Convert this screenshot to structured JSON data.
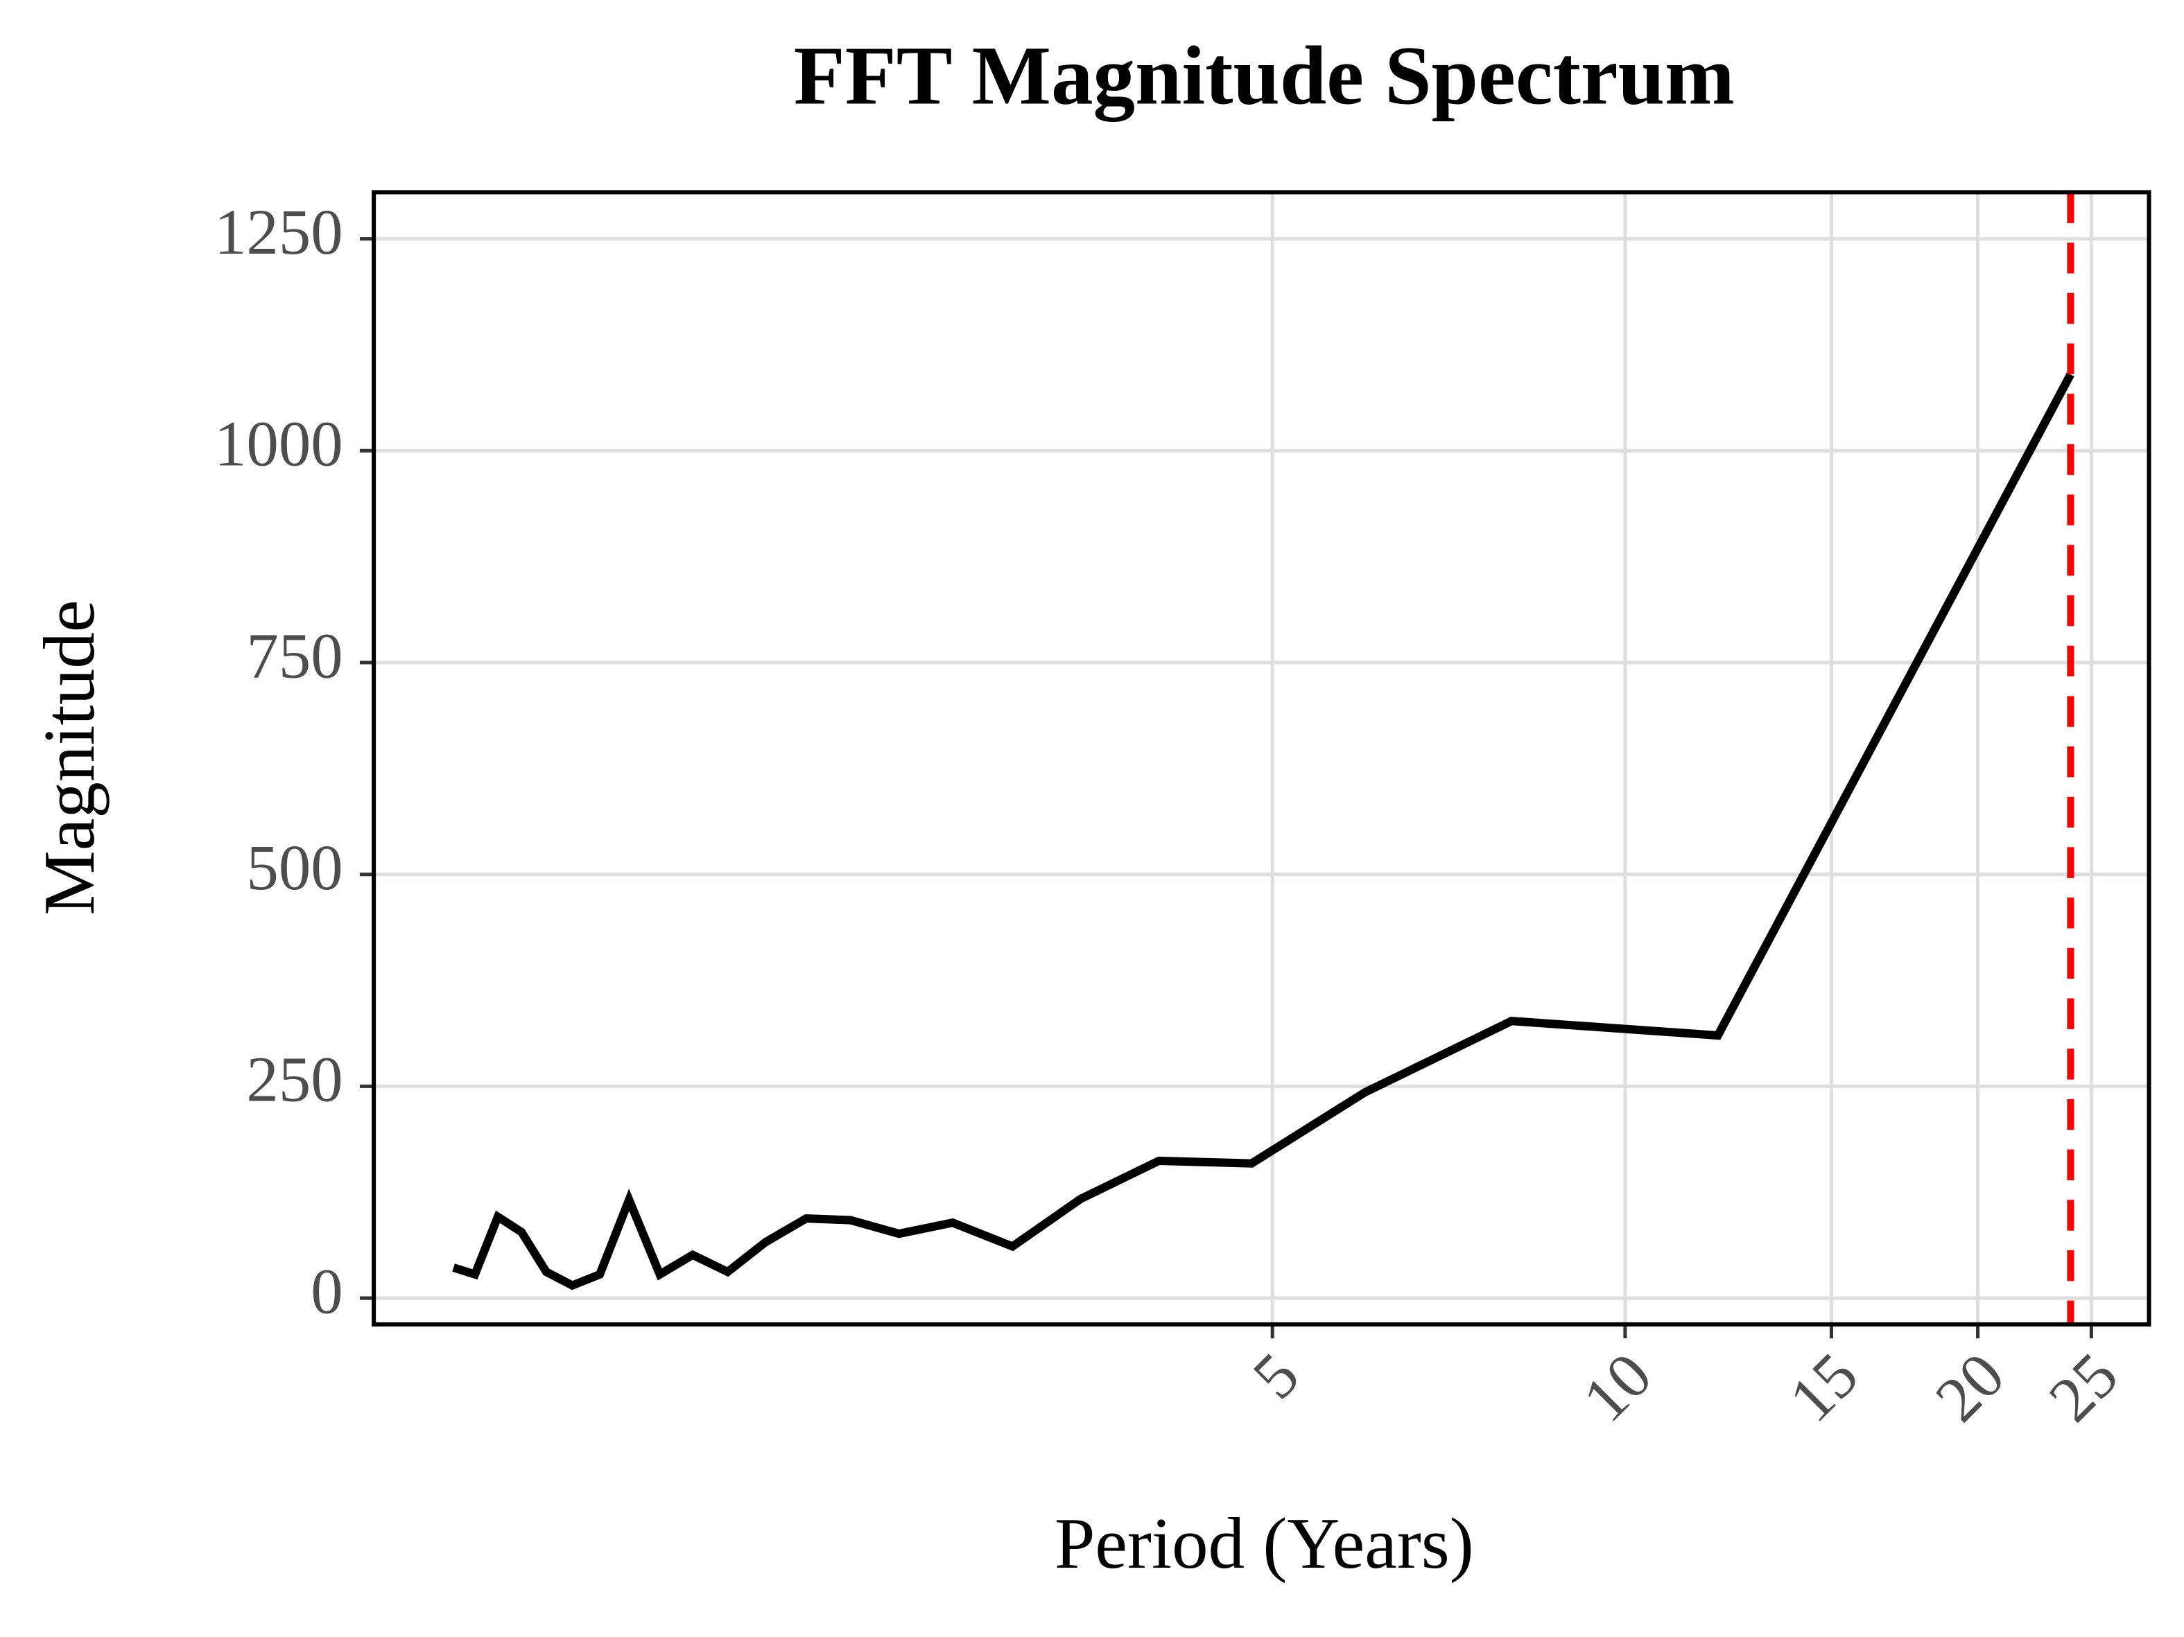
{
  "chart_data": {
    "type": "line",
    "title": "FFT Magnitude Spectrum",
    "x_label": "Period (Years)",
    "y_label": "Magnitude",
    "x": [
      1,
      1.043,
      1.091,
      1.143,
      1.2,
      1.263,
      1.333,
      1.412,
      1.5,
      1.6,
      1.714,
      1.846,
      2,
      2.182,
      2.4,
      2.667,
      3,
      3.429,
      4,
      4.8,
      6,
      8,
      12,
      24
    ],
    "values": [
      36,
      28,
      96,
      78,
      31,
      15,
      28,
      116,
      28,
      51,
      31,
      66,
      94,
      92,
      76,
      89,
      61,
      117,
      162,
      159,
      243,
      327,
      310,
      1090
    ],
    "color": "#000000",
    "xscale": "log",
    "xlim": [
      0.855,
      28
    ],
    "xticks": [
      5,
      10,
      15,
      20,
      25
    ],
    "ylim": [
      -31,
      1305
    ],
    "yticks": [
      0,
      250,
      500,
      750,
      1000,
      1250
    ],
    "grid": true,
    "vline": {
      "value": 24,
      "color": "#ff0000"
    }
  }
}
